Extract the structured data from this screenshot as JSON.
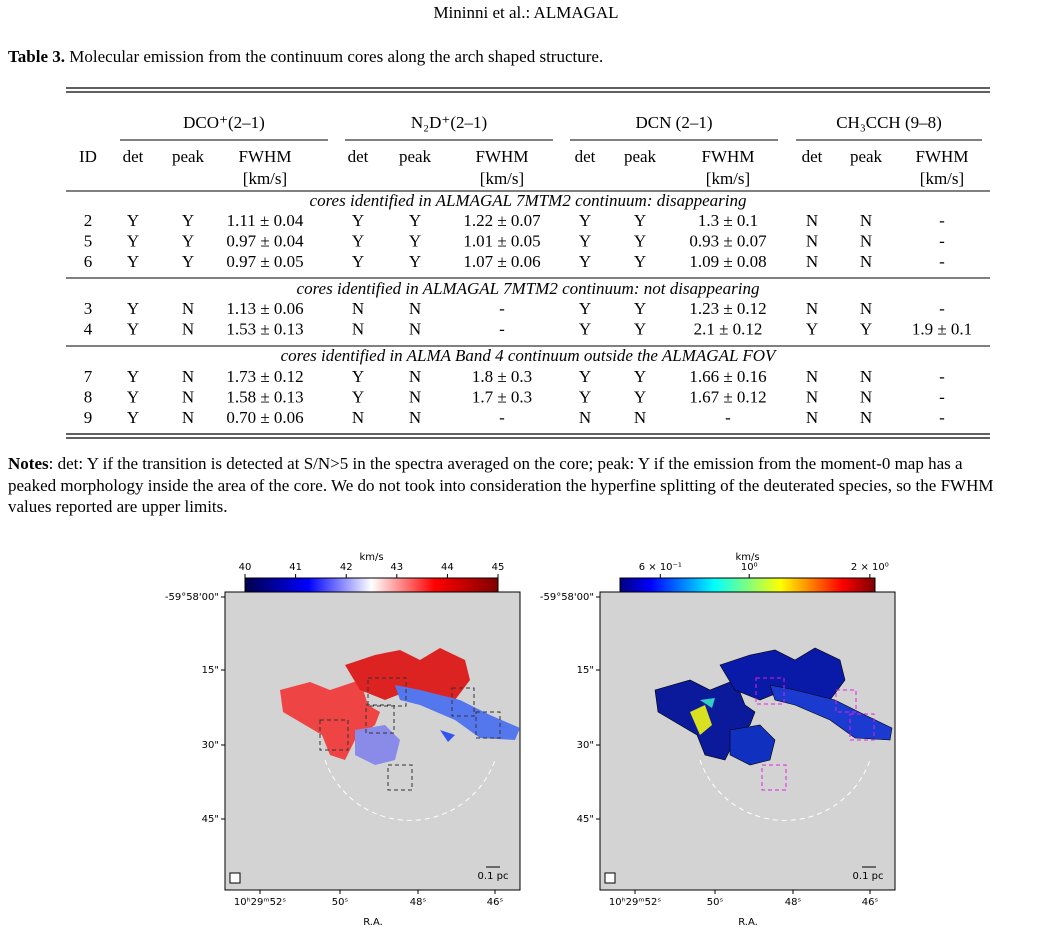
{
  "header": {
    "running_title": "Mininni et al.: ALMAGAL"
  },
  "table": {
    "caption_label": "Table 3.",
    "caption": "Molecular emission from the continuum cores along the arch shaped structure.",
    "groups": [
      "DCO⁺(2–1)",
      "N₂D⁺(2–1)",
      "DCN (2–1)",
      "CH₃CCH (9–8)"
    ],
    "columns": [
      "ID",
      "det",
      "peak",
      "FWHM",
      "det",
      "peak",
      "FWHM",
      "det",
      "peak",
      "FWHM",
      "det",
      "peak",
      "FWHM"
    ],
    "unit": "[km/s]",
    "sections": [
      {
        "title": "cores identified in ALMAGAL 7MTM2 continuum: disappearing",
        "rows": [
          [
            2,
            "Y",
            "Y",
            "1.11 ± 0.04",
            "Y",
            "Y",
            "1.22 ± 0.07",
            "Y",
            "Y",
            "1.3 ± 0.1",
            "N",
            "N",
            "-"
          ],
          [
            5,
            "Y",
            "Y",
            "0.97 ± 0.04",
            "Y",
            "Y",
            "1.01 ± 0.05",
            "Y",
            "Y",
            "0.93 ± 0.07",
            "N",
            "N",
            "-"
          ],
          [
            6,
            "Y",
            "Y",
            "0.97 ± 0.05",
            "Y",
            "Y",
            "1.07 ± 0.06",
            "Y",
            "Y",
            "1.09 ± 0.08",
            "N",
            "N",
            "-"
          ]
        ]
      },
      {
        "title": "cores identified in ALMAGAL 7MTM2 continuum: not disappearing",
        "rows": [
          [
            3,
            "Y",
            "N",
            "1.13 ± 0.06",
            "N",
            "N",
            "-",
            "Y",
            "Y",
            "1.23 ± 0.12",
            "N",
            "N",
            "-"
          ],
          [
            4,
            "Y",
            "N",
            "1.53 ± 0.13",
            "N",
            "N",
            "-",
            "Y",
            "Y",
            "2.1 ± 0.12",
            "Y",
            "Y",
            "1.9 ± 0.1"
          ]
        ]
      },
      {
        "title": "cores identified in ALMA Band 4 continuum outside the ALMAGAL FOV",
        "rows": [
          [
            7,
            "Y",
            "N",
            "1.73 ± 0.12",
            "Y",
            "N",
            "1.8 ± 0.3",
            "Y",
            "Y",
            "1.66 ± 0.16",
            "N",
            "N",
            "-"
          ],
          [
            8,
            "Y",
            "N",
            "1.58 ± 0.13",
            "Y",
            "N",
            "1.7 ± 0.3",
            "Y",
            "Y",
            "1.67 ± 0.12",
            "N",
            "N",
            "-"
          ],
          [
            9,
            "Y",
            "N",
            "0.70 ± 0.06",
            "N",
            "N",
            "-",
            "N",
            "N",
            "-",
            "N",
            "N",
            "-"
          ]
        ]
      }
    ]
  },
  "notes": {
    "label": "Notes",
    "lines": [
      ": det: Y if the transition is detected at S/N>5 in the spectra averaged on the core; peak: Y if the emission from the moment-0 map has a",
      "peaked morphology inside the area of the core. We do not took into consideration the hyperfine splitting of the deuterated species, so the FWHM",
      "values reported are upper limits."
    ]
  },
  "figure": {
    "panels": [
      {
        "colorbar_unit": "km/s",
        "colorbar_range": [
          40,
          45
        ],
        "log": false,
        "colorbar_ticks": [
          40,
          41,
          42,
          43,
          44,
          45
        ],
        "y_ticks": [
          "-59°58'00\"",
          "15\"",
          "30\"",
          "45\""
        ],
        "x_ticks": [
          "10ʰ29ᵐ52ˢ",
          "50ˢ",
          "48ˢ",
          "46ˢ"
        ],
        "x_label": "R.A.",
        "scale_bar": "0.1 pc"
      },
      {
        "colorbar_unit": "km/s",
        "colorbar_range": [
          0.476,
          2.06
        ],
        "log": true,
        "colorbar_ticks": [
          {
            "value": 0.6,
            "label": "6 × 10⁻¹"
          },
          {
            "value": 1,
            "label": "10⁰"
          },
          {
            "value": 2,
            "label": "2 × 10⁰"
          }
        ],
        "y_ticks": [
          "-59°58'00\"",
          "15\"",
          "30\"",
          "45\""
        ],
        "x_ticks": [
          "10ʰ29ᵐ52ˢ",
          "50ˢ",
          "48ˢ",
          "46ˢ"
        ],
        "x_label": "R.A.",
        "scale_bar": "0.1 pc"
      }
    ]
  }
}
